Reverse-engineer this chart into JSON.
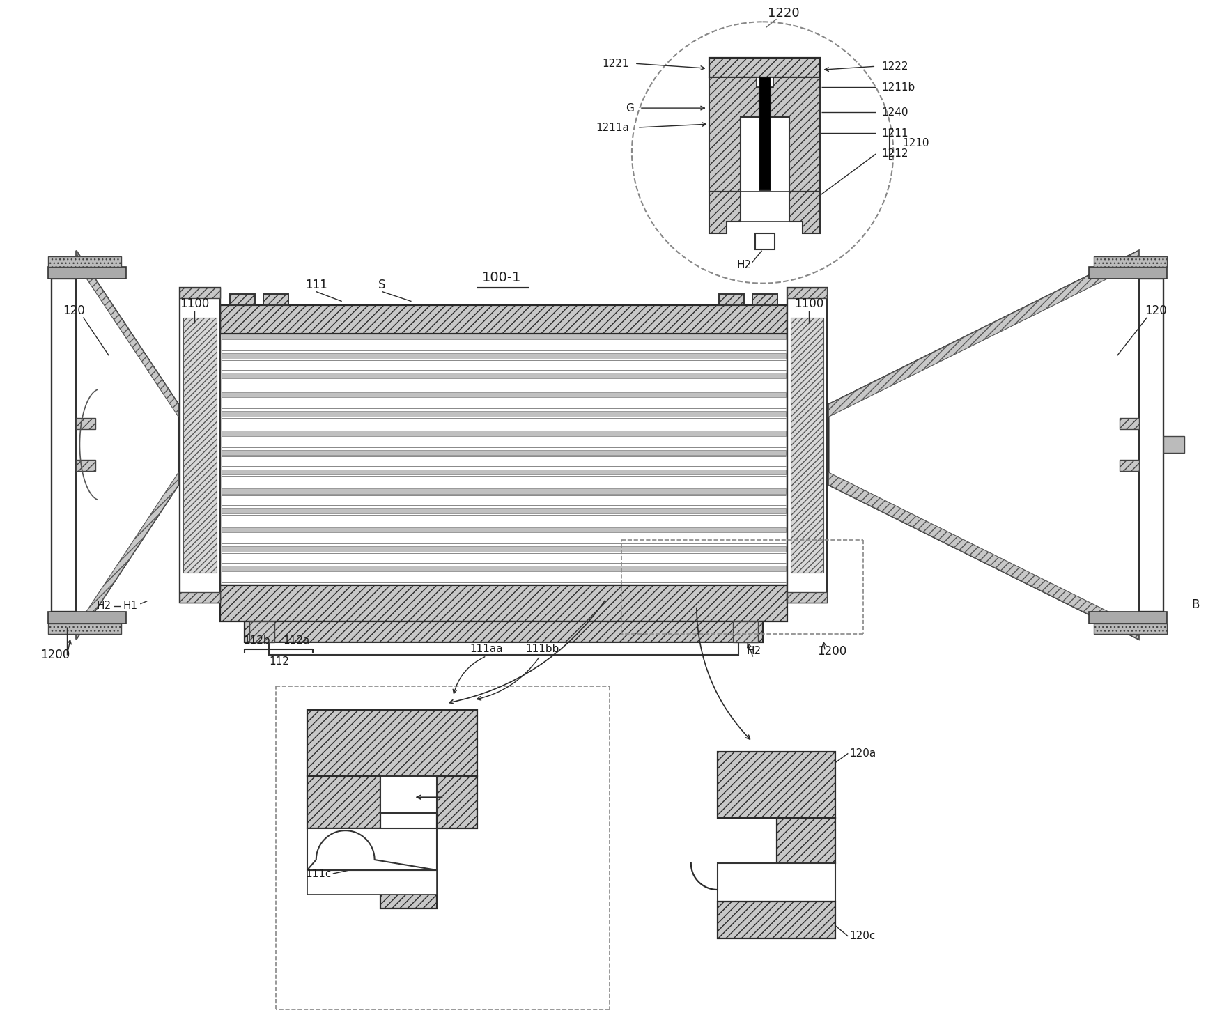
{
  "bg": "#ffffff",
  "lc": "#2a2a2a",
  "labels": {
    "l1220": "1220",
    "l1221": "1221",
    "l1222": "1222",
    "l1211b": "1211b",
    "lG": "G",
    "l1211a": "1211a",
    "l1240": "1240",
    "l1211": "1211",
    "l1212": "1212",
    "l1210": "1210",
    "lH2_circ": "H2",
    "l100_1": "100-1",
    "l111": "111",
    "lS": "S",
    "l1100_L": "1100",
    "l1100_R": "1100",
    "l120_L": "120",
    "l120_R": "120",
    "lH2_L": "H2",
    "lH1_L": "H1",
    "l1200_L": "1200",
    "l112b": "112b",
    "l112a": "112a",
    "l112": "112",
    "l111aa": "111aa",
    "l111bb": "111bb",
    "lH2_R": "H2",
    "l1200_R": "1200",
    "lB": "B",
    "l111c": "111c",
    "l120a": "120a",
    "l120c": "120c"
  }
}
